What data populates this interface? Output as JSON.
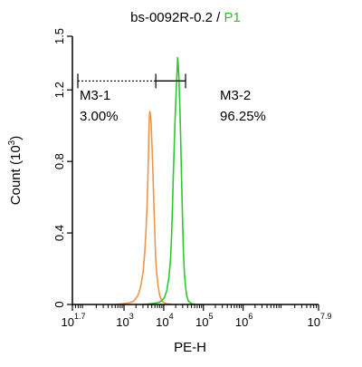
{
  "chart_data": {
    "type": "line",
    "title_main": "bs-0092R-0.2",
    "title_sep": " / ",
    "title_gate": "P1",
    "xlabel": "PE-H",
    "ylabel_prefix": "Count (10",
    "ylabel_exp": "3",
    "ylabel_suffix": ")",
    "x_scale": "log",
    "xlim_log10": [
      1.7,
      7.9
    ],
    "ylim": [
      0,
      1.5
    ],
    "y_ticks": [
      "0",
      "0.4",
      "0.8",
      "1.2",
      "1.5"
    ],
    "y_tick_values": [
      0,
      0.4,
      0.8,
      1.2,
      1.5
    ],
    "x_ticks": [
      {
        "base": "10",
        "exp": "1.7",
        "log10": 1.7
      },
      {
        "base": "10",
        "exp": "3",
        "log10": 3
      },
      {
        "base": "10",
        "exp": "4",
        "log10": 4
      },
      {
        "base": "10",
        "exp": "5",
        "log10": 5
      },
      {
        "base": "10",
        "exp": "6",
        "log10": 6
      },
      {
        "base": "10",
        "exp": "7.9",
        "log10": 7.9
      }
    ],
    "colors": {
      "title_gate": "#2bbd2b",
      "control": "#f0964a",
      "sample": "#2ec82e",
      "axis": "#000000"
    },
    "series": [
      {
        "color": "#f0964a",
        "points_log10x": [
          [
            2.8,
            0
          ],
          [
            3.0,
            0.005
          ],
          [
            3.15,
            0.01
          ],
          [
            3.25,
            0.02
          ],
          [
            3.35,
            0.05
          ],
          [
            3.42,
            0.1
          ],
          [
            3.48,
            0.18
          ],
          [
            3.52,
            0.28
          ],
          [
            3.55,
            0.4
          ],
          [
            3.58,
            0.55
          ],
          [
            3.6,
            0.7
          ],
          [
            3.62,
            0.88
          ],
          [
            3.63,
            1.0
          ],
          [
            3.64,
            1.05
          ],
          [
            3.65,
            1.08
          ],
          [
            3.66,
            1.07
          ],
          [
            3.68,
            1.02
          ],
          [
            3.7,
            0.92
          ],
          [
            3.72,
            0.8
          ],
          [
            3.74,
            0.65
          ],
          [
            3.76,
            0.5
          ],
          [
            3.78,
            0.36
          ],
          [
            3.8,
            0.25
          ],
          [
            3.83,
            0.16
          ],
          [
            3.86,
            0.1
          ],
          [
            3.9,
            0.05
          ],
          [
            3.95,
            0.02
          ],
          [
            4.05,
            0.005
          ],
          [
            4.2,
            0
          ]
        ]
      },
      {
        "color": "#2ec82e",
        "points_log10x": [
          [
            3.5,
            0
          ],
          [
            3.7,
            0.005
          ],
          [
            3.85,
            0.01
          ],
          [
            3.95,
            0.02
          ],
          [
            4.02,
            0.04
          ],
          [
            4.08,
            0.08
          ],
          [
            4.13,
            0.15
          ],
          [
            4.17,
            0.25
          ],
          [
            4.2,
            0.4
          ],
          [
            4.22,
            0.55
          ],
          [
            4.24,
            0.7
          ],
          [
            4.26,
            0.85
          ],
          [
            4.28,
            1.0
          ],
          [
            4.3,
            1.12
          ],
          [
            4.32,
            1.22
          ],
          [
            4.34,
            1.32
          ],
          [
            4.35,
            1.38
          ],
          [
            4.36,
            1.36
          ],
          [
            4.38,
            1.28
          ],
          [
            4.4,
            1.15
          ],
          [
            4.42,
            1.0
          ],
          [
            4.44,
            0.8
          ],
          [
            4.46,
            0.6
          ],
          [
            4.48,
            0.42
          ],
          [
            4.5,
            0.28
          ],
          [
            4.52,
            0.18
          ],
          [
            4.55,
            0.1
          ],
          [
            4.58,
            0.05
          ],
          [
            4.62,
            0.02
          ],
          [
            4.7,
            0.005
          ],
          [
            4.8,
            0
          ]
        ]
      }
    ],
    "markers": [
      {
        "name": "M3-1",
        "percent": "3.00%",
        "from_log10": 1.7,
        "to_log10": 3.8
      },
      {
        "name": "M3-2",
        "percent": "96.25%",
        "from_log10": 3.8,
        "to_log10": 4.55
      }
    ],
    "marker_y": 1.25
  }
}
